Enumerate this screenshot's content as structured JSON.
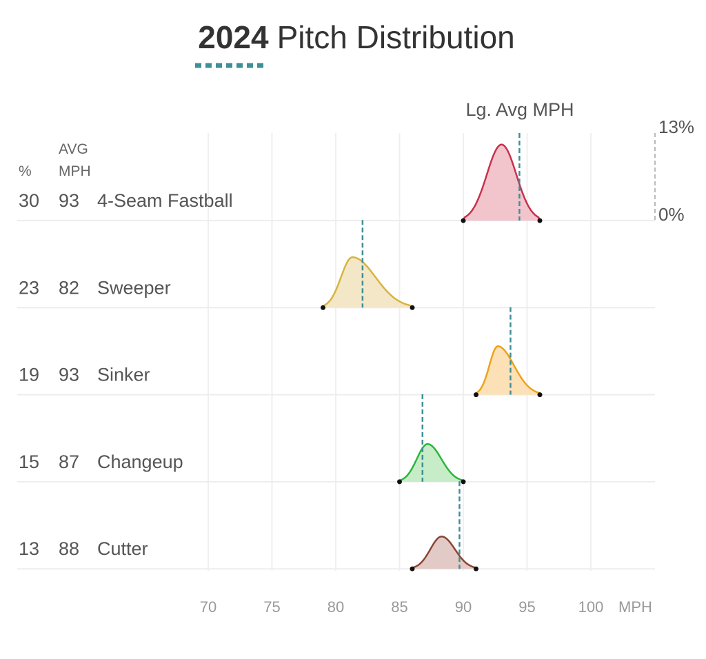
{
  "chart_data": {
    "type": "ridgeline",
    "title_bold": "2024",
    "title_rest": "Pitch Distribution",
    "accent_color": "#3f8f96",
    "header": {
      "pct": "%",
      "avg_line1": "AVG",
      "avg_line2": "MPH"
    },
    "league_avg_label": "Lg. Avg MPH",
    "scale_max_label": "13%",
    "scale_min_label": "0%",
    "scale_max": 13,
    "xlabel": "MPH",
    "xlim": [
      70,
      105
    ],
    "xticks": [
      70,
      75,
      80,
      85,
      90,
      95,
      100
    ],
    "series": [
      {
        "name": "4-Seam Fastball",
        "pct": "30",
        "avg": "93",
        "min": 90,
        "max": 96,
        "peak_mph": 93,
        "peak_density": 11.3,
        "league_avg": 94.4,
        "color": "#c9304c",
        "fill": "#f2c5cd"
      },
      {
        "name": "Sweeper",
        "pct": "23",
        "avg": "82",
        "min": 79,
        "max": 86,
        "peak_mph": 81.3,
        "peak_density": 7.5,
        "league_avg": 82.1,
        "color": "#d6b43e",
        "fill": "#f4e7c8"
      },
      {
        "name": "Sinker",
        "pct": "19",
        "avg": "93",
        "min": 91,
        "max": 96,
        "peak_mph": 92.7,
        "peak_density": 7.2,
        "league_avg": 93.7,
        "color": "#eea21a",
        "fill": "#fde1b6"
      },
      {
        "name": "Changeup",
        "pct": "15",
        "avg": "87",
        "min": 85,
        "max": 90,
        "peak_mph": 87.2,
        "peak_density": 5.6,
        "league_avg": 86.8,
        "color": "#2cb53c",
        "fill": "#c6edc8"
      },
      {
        "name": "Cutter",
        "pct": "13",
        "avg": "88",
        "min": 86,
        "max": 91,
        "peak_mph": 88.3,
        "peak_density": 4.8,
        "league_avg": 89.7,
        "color": "#8a4535",
        "fill": "#e2cbc6"
      }
    ]
  }
}
